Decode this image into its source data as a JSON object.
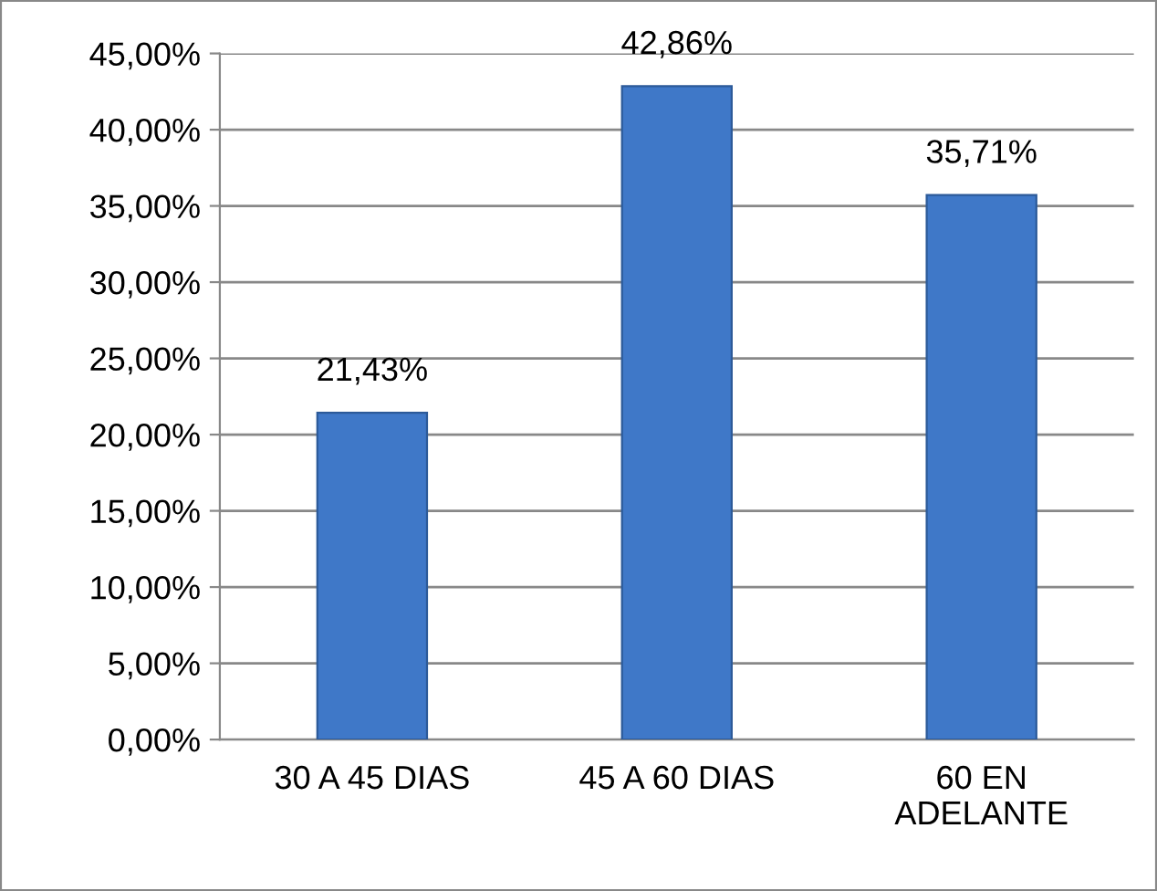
{
  "chart_data": {
    "type": "bar",
    "categories": [
      "30 A 45 DIAS",
      "45 A 60 DIAS",
      "60 EN\nADELANTE"
    ],
    "values": [
      21.43,
      42.86,
      35.71
    ],
    "value_labels": [
      "21,43%",
      "42,86%",
      "35,71%"
    ],
    "color": "#3f78c8",
    "ylim": [
      0,
      45
    ],
    "yticks": [
      {
        "value": 0,
        "label": "0,00%"
      },
      {
        "value": 5,
        "label": "5,00%"
      },
      {
        "value": 10,
        "label": "10,00%"
      },
      {
        "value": 15,
        "label": "15,00%"
      },
      {
        "value": 20,
        "label": "20,00%"
      },
      {
        "value": 25,
        "label": "25,00%"
      },
      {
        "value": 30,
        "label": "30,00%"
      },
      {
        "value": 35,
        "label": "35,00%"
      },
      {
        "value": 40,
        "label": "40,00%"
      },
      {
        "value": 45,
        "label": "45,00%"
      }
    ],
    "grid": "y",
    "legend": false
  }
}
